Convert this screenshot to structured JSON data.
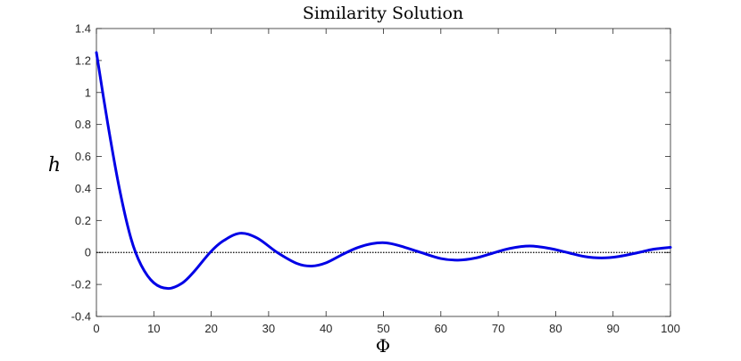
{
  "chart_data": {
    "type": "line",
    "title": "Similarity Solution",
    "xlabel": "Φ",
    "ylabel": "h",
    "xlim": [
      0,
      100
    ],
    "ylim": [
      -0.4,
      1.4
    ],
    "x_ticks": [
      0,
      10,
      20,
      30,
      40,
      50,
      60,
      70,
      80,
      90,
      100
    ],
    "y_ticks": [
      -0.4,
      -0.2,
      0,
      0.2,
      0.4,
      0.6,
      0.8,
      1,
      1.2,
      1.4
    ],
    "x_tick_labels": [
      "0",
      "10",
      "20",
      "30",
      "40",
      "50",
      "60",
      "70",
      "80",
      "90",
      "100"
    ],
    "y_tick_labels": [
      "-0.4",
      "-0.2",
      "0",
      "0.2",
      "0.4",
      "0.6",
      "0.8",
      "1",
      "1.2",
      "1.4"
    ],
    "grid": false,
    "series": [
      {
        "color": "#0000e6",
        "x": [
          0,
          2,
          4,
          6,
          7.8,
          10,
          12.5,
          15,
          17,
          19.8,
          22,
          25,
          28,
          31.5,
          35,
          37.5,
          40,
          43,
          45.5,
          48,
          50.5,
          53,
          56.5,
          60,
          63,
          66,
          69,
          72,
          75.5,
          79,
          82,
          85,
          88,
          91,
          94.5,
          97,
          100
        ],
        "y": [
          1.25,
          0.8,
          0.4,
          0.09,
          -0.08,
          -0.19,
          -0.225,
          -0.19,
          -0.12,
          0.0,
          0.07,
          0.12,
          0.09,
          0.0,
          -0.07,
          -0.085,
          -0.065,
          -0.01,
          0.03,
          0.055,
          0.06,
          0.04,
          0.0,
          -0.038,
          -0.048,
          -0.035,
          -0.005,
          0.025,
          0.04,
          0.025,
          0.0,
          -0.025,
          -0.034,
          -0.025,
          0.0,
          0.02,
          0.032
        ]
      },
      {
        "color": "#000000",
        "style": "dotted",
        "x": [
          0,
          100
        ],
        "y": [
          0,
          0
        ]
      }
    ]
  }
}
